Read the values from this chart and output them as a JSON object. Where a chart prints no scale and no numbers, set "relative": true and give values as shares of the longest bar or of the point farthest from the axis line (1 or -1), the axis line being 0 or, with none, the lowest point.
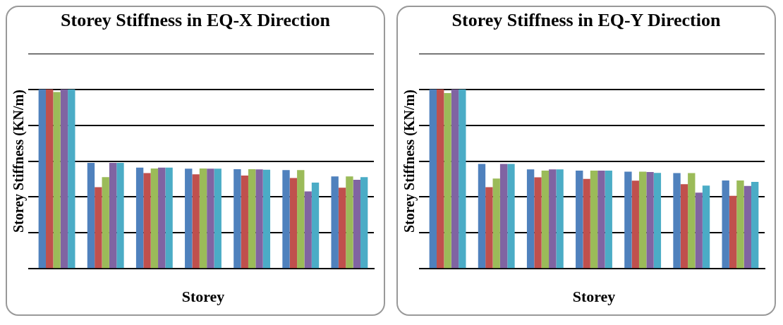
{
  "chart_data": [
    {
      "type": "bar",
      "title": "Storey Stiffness in EQ-X Direction",
      "xlabel": "Storey",
      "ylabel": "Storey Stiffness (KN/m)",
      "relative": true,
      "grid": "y",
      "legend": false,
      "categories": [
        null,
        null,
        null,
        null,
        null,
        null,
        null
      ],
      "series": [
        {
          "color": "#4f81bd",
          "values": [
            1,
            0.591,
            0.564,
            0.558,
            0.555,
            0.55,
            0.515
          ]
        },
        {
          "color": "#c0504d",
          "values": [
            1,
            0.455,
            0.534,
            0.527,
            0.52,
            0.506,
            0.452
          ]
        },
        {
          "color": "#9bbb59",
          "values": [
            0.986,
            0.511,
            0.559,
            0.559,
            0.555,
            0.55,
            0.515
          ]
        },
        {
          "color": "#8064a2",
          "values": [
            1,
            0.591,
            0.564,
            0.558,
            0.554,
            0.431,
            0.496
          ]
        },
        {
          "color": "#4bacc6",
          "values": [
            1,
            0.591,
            0.564,
            0.558,
            0.552,
            0.48,
            0.511
          ]
        }
      ]
    },
    {
      "type": "bar",
      "title": "Storey Stiffness in EQ-Y Direction",
      "xlabel": "Storey",
      "ylabel": "Storey Stiffness (KN/m)",
      "relative": true,
      "grid": "y",
      "legend": false,
      "categories": [
        null,
        null,
        null,
        null,
        null,
        null,
        null
      ],
      "series": [
        {
          "color": "#4f81bd",
          "values": [
            1,
            0.585,
            0.554,
            0.547,
            0.541,
            0.534,
            0.492
          ]
        },
        {
          "color": "#c0504d",
          "values": [
            1,
            0.455,
            0.51,
            0.501,
            0.491,
            0.472,
            0.407
          ]
        },
        {
          "color": "#9bbb59",
          "values": [
            0.98,
            0.503,
            0.547,
            0.547,
            0.541,
            0.534,
            0.492
          ]
        },
        {
          "color": "#8064a2",
          "values": [
            1,
            0.585,
            0.554,
            0.547,
            0.539,
            0.424,
            0.462
          ]
        },
        {
          "color": "#4bacc6",
          "values": [
            1,
            0.585,
            0.554,
            0.547,
            0.535,
            0.464,
            0.484
          ]
        }
      ]
    }
  ]
}
